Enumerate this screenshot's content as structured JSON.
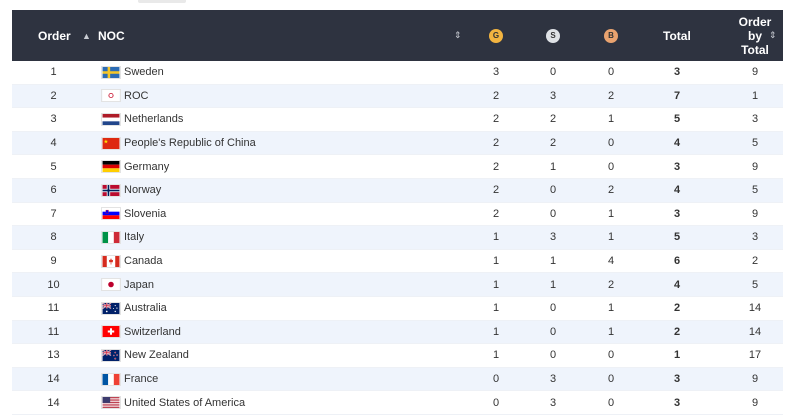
{
  "header": {
    "order": "Order",
    "noc": "NOC",
    "gold": "G",
    "silver": "S",
    "bronze": "B",
    "total": "Total",
    "order_by_total_lines": [
      "Order",
      "by",
      "Total"
    ],
    "sort_icon": "sort-icon"
  },
  "colors": {
    "header_bg": "#2e3340",
    "alt_row_bg": "#eff4fc",
    "gold": "#f2b440",
    "silver": "#dfe2e6",
    "bronze": "#e9a36f"
  },
  "rows": [
    {
      "order": "1",
      "noc": "Sweden",
      "flag": "sweden",
      "g": "3",
      "s": "0",
      "b": "0",
      "total": "3",
      "order_by_total": "9"
    },
    {
      "order": "2",
      "noc": "ROC",
      "flag": "roc",
      "g": "2",
      "s": "3",
      "b": "2",
      "total": "7",
      "order_by_total": "1"
    },
    {
      "order": "3",
      "noc": "Netherlands",
      "flag": "netherlands",
      "g": "2",
      "s": "2",
      "b": "1",
      "total": "5",
      "order_by_total": "3"
    },
    {
      "order": "4",
      "noc": "People's Republic of China",
      "flag": "china",
      "g": "2",
      "s": "2",
      "b": "0",
      "total": "4",
      "order_by_total": "5"
    },
    {
      "order": "5",
      "noc": "Germany",
      "flag": "germany",
      "g": "2",
      "s": "1",
      "b": "0",
      "total": "3",
      "order_by_total": "9"
    },
    {
      "order": "6",
      "noc": "Norway",
      "flag": "norway",
      "g": "2",
      "s": "0",
      "b": "2",
      "total": "4",
      "order_by_total": "5"
    },
    {
      "order": "7",
      "noc": "Slovenia",
      "flag": "slovenia",
      "g": "2",
      "s": "0",
      "b": "1",
      "total": "3",
      "order_by_total": "9"
    },
    {
      "order": "8",
      "noc": "Italy",
      "flag": "italy",
      "g": "1",
      "s": "3",
      "b": "1",
      "total": "5",
      "order_by_total": "3"
    },
    {
      "order": "9",
      "noc": "Canada",
      "flag": "canada",
      "g": "1",
      "s": "1",
      "b": "4",
      "total": "6",
      "order_by_total": "2"
    },
    {
      "order": "10",
      "noc": "Japan",
      "flag": "japan",
      "g": "1",
      "s": "1",
      "b": "2",
      "total": "4",
      "order_by_total": "5"
    },
    {
      "order": "11",
      "noc": "Australia",
      "flag": "australia",
      "g": "1",
      "s": "0",
      "b": "1",
      "total": "2",
      "order_by_total": "14"
    },
    {
      "order": "11",
      "noc": "Switzerland",
      "flag": "switzerland",
      "g": "1",
      "s": "0",
      "b": "1",
      "total": "2",
      "order_by_total": "14"
    },
    {
      "order": "13",
      "noc": "New Zealand",
      "flag": "new-zealand",
      "g": "1",
      "s": "0",
      "b": "0",
      "total": "1",
      "order_by_total": "17"
    },
    {
      "order": "14",
      "noc": "France",
      "flag": "france",
      "g": "0",
      "s": "3",
      "b": "0",
      "total": "3",
      "order_by_total": "9"
    },
    {
      "order": "14",
      "noc": "United States of America",
      "flag": "usa",
      "g": "0",
      "s": "3",
      "b": "0",
      "total": "3",
      "order_by_total": "9"
    }
  ]
}
